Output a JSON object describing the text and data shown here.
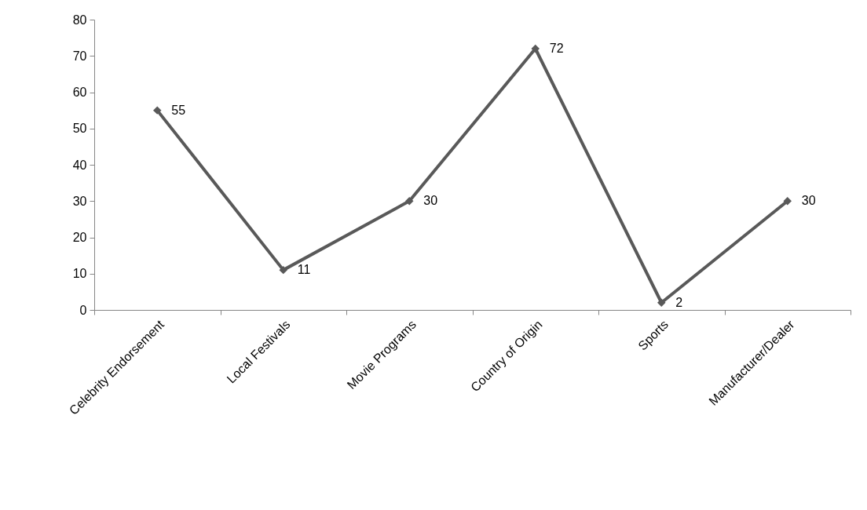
{
  "chart_data": {
    "type": "line",
    "categories": [
      "Celebrity Endorsement",
      "Local Festivals",
      "Movie Programs",
      "Country of Origin",
      "Sports",
      "Manufacturer/Dealer"
    ],
    "series": [
      {
        "color": "#595959",
        "values": [
          55,
          11,
          30,
          72,
          2,
          30
        ]
      }
    ],
    "ylim": [
      0,
      80
    ],
    "yticks": [
      0,
      10,
      20,
      30,
      40,
      50,
      60,
      70,
      80
    ],
    "grid": false,
    "marker": "diamond",
    "line_style": "solid",
    "data_labels": true
  }
}
